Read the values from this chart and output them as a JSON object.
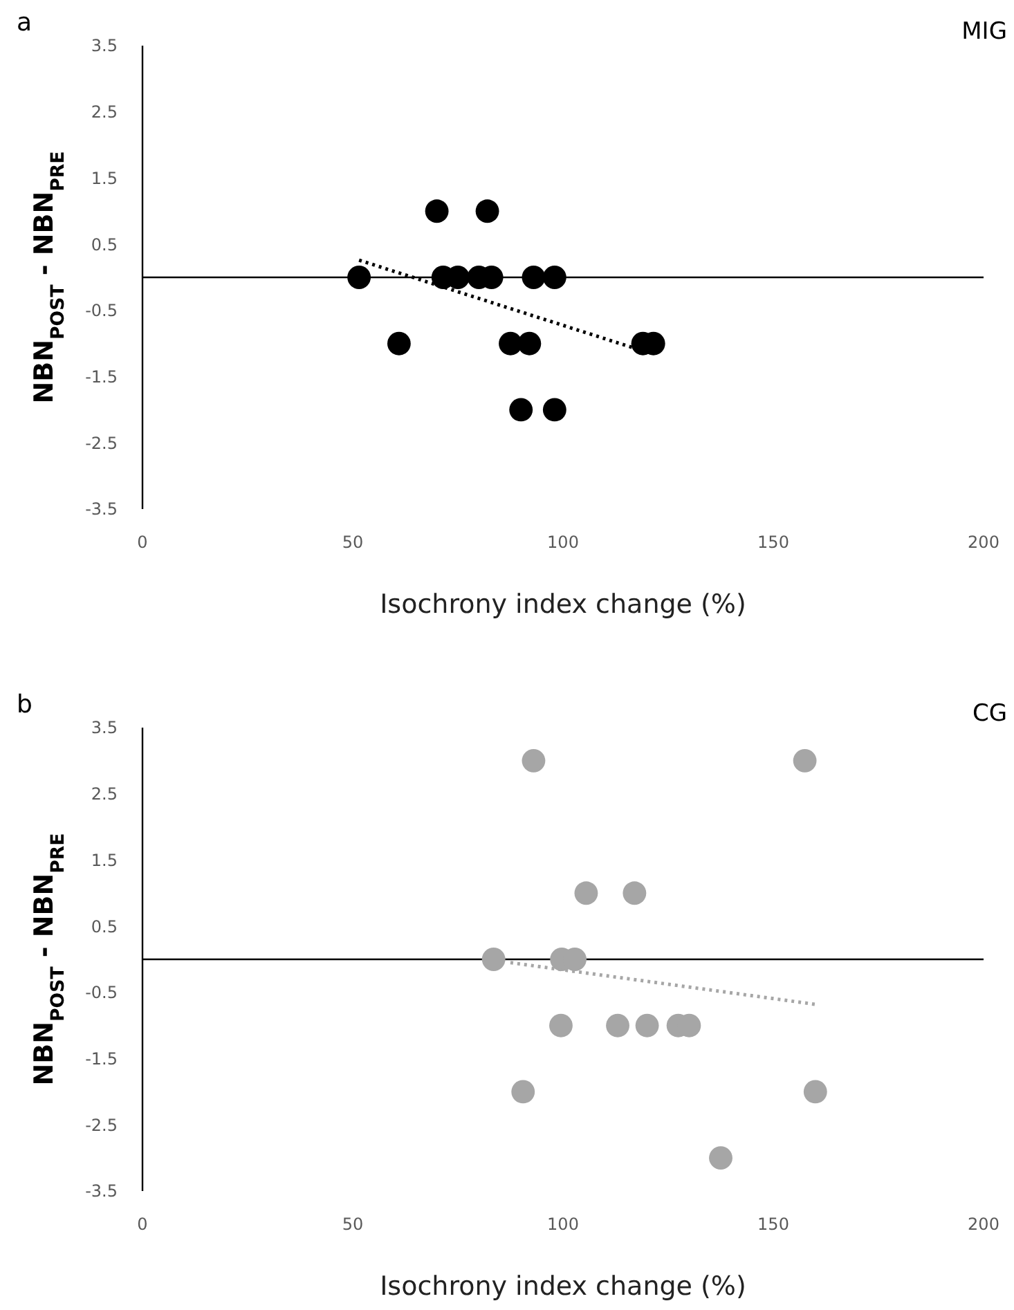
{
  "chart_data": [
    {
      "type": "scatter",
      "title": "MIG",
      "annotations": [
        "a"
      ],
      "xlabel": "Isochrony index change (%)",
      "ylabel": "NBN$_{POST}$ - NBN$_{PRE}$",
      "xlim": [
        0,
        200
      ],
      "xticks": [
        0,
        50,
        100,
        150,
        200
      ],
      "ylim": [
        -3.5,
        3.5
      ],
      "yticks": [
        3.5,
        2.5,
        1.5,
        0.5,
        -0.5,
        -1.5,
        -2.5,
        -3.5
      ],
      "grid": false,
      "marker": "circle",
      "ref_lines": [
        {
          "axis": "y",
          "value": 0,
          "color": "#000000"
        }
      ],
      "series": [
        {
          "color": "#000000",
          "x": [
            51.5,
            70,
            82,
            71.5,
            75,
            80,
            83,
            93,
            98,
            61,
            87.5,
            92,
            119,
            121.5,
            90,
            98
          ],
          "values": [
            0,
            1,
            1,
            0,
            0,
            0,
            0,
            0,
            0,
            -1,
            -1,
            -1,
            -1,
            -1,
            -2,
            -2
          ]
        },
        {
          "type": "line",
          "line_style": "dotted",
          "marker": "none",
          "color": "#000000",
          "x": [
            51.5,
            117
          ],
          "values": [
            0.26,
            -1.07
          ]
        }
      ]
    },
    {
      "type": "scatter",
      "title": "CG",
      "annotations": [
        "b"
      ],
      "xlabel": "Isochrony index change (%)",
      "ylabel": "NBN$_{POST}$ - NBN$_{PRE}$",
      "xlim": [
        0,
        200
      ],
      "xticks": [
        0,
        50,
        100,
        150,
        200
      ],
      "ylim": [
        -3.5,
        3.5
      ],
      "yticks": [
        3.5,
        2.5,
        1.5,
        0.5,
        -0.5,
        -1.5,
        -2.5,
        -3.5
      ],
      "grid": false,
      "marker": "circle",
      "ref_lines": [
        {
          "axis": "y",
          "value": 0,
          "color": "#000000"
        }
      ],
      "series": [
        {
          "color": "#a6a6a6",
          "x": [
            93,
            157.5,
            105.5,
            117,
            83.5,
            99.7,
            102.8,
            99.5,
            113,
            120,
            127.4,
            130,
            90.5,
            160,
            137.5
          ],
          "values": [
            3,
            3,
            1,
            1,
            0,
            0,
            0,
            -1,
            -1,
            -1,
            -1,
            -1,
            -2,
            -2,
            -3
          ]
        },
        {
          "type": "line",
          "line_style": "dotted",
          "marker": "none",
          "color": "#a6a6a6",
          "x": [
            87.5,
            160
          ],
          "values": [
            -0.05,
            -0.68
          ]
        }
      ]
    }
  ]
}
